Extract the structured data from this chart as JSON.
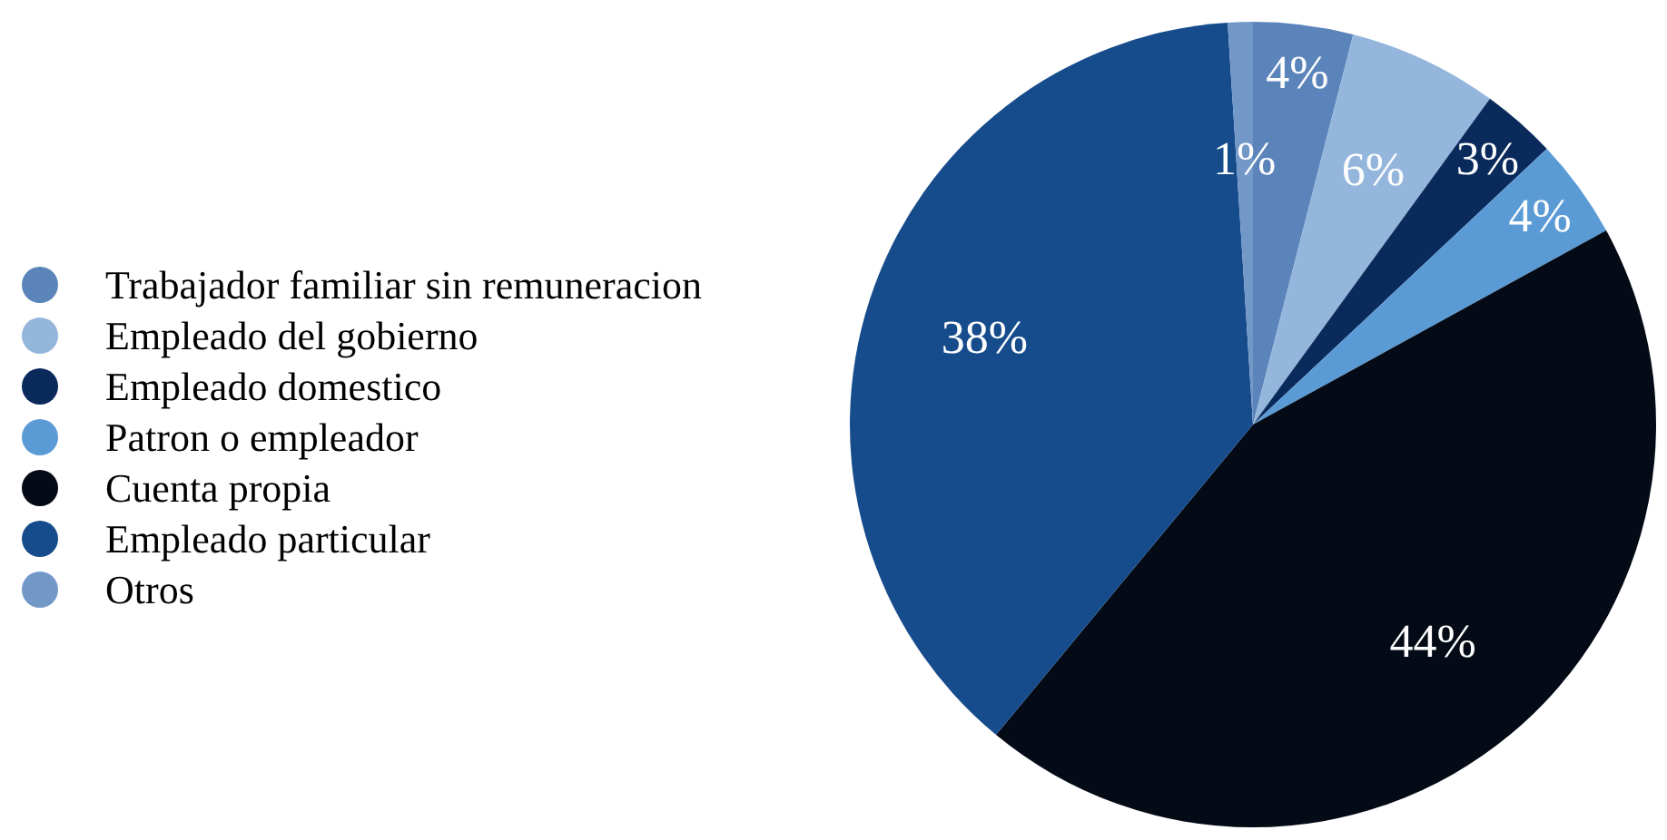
{
  "chart_data": {
    "type": "pie",
    "categories": [
      "Trabajador familiar sin remuneracion",
      "Empleado del gobierno",
      "Empleado domestico",
      "Patron o empleador",
      "Cuenta propia",
      "Empleado particular",
      "Otros"
    ],
    "values": [
      4,
      6,
      3,
      4,
      44,
      38,
      1
    ],
    "colors": [
      "#5b84bb",
      "#95b6dc",
      "#0a2a5c",
      "#5b9bd5",
      "#040b16",
      "#174c8c",
      "#7298c8"
    ],
    "value_labels": [
      "4%",
      "6%",
      "3%",
      "4%",
      "44%",
      "38%",
      "1%"
    ],
    "legend": "left"
  }
}
